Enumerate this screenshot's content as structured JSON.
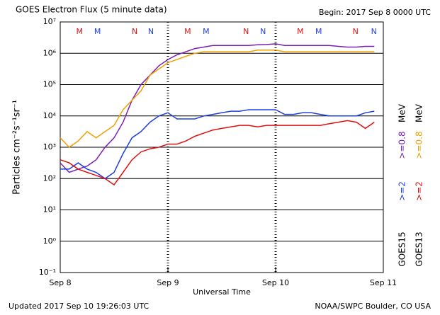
{
  "chart_data": {
    "type": "line",
    "title": "GOES Electron Flux (5 minute data)",
    "subtitle": "Begin: 2017 Sep 8 0000 UTC",
    "x_label": "Universal Time",
    "y_label": "Particles cm⁻²s⁻¹sr⁻¹",
    "footer_left": "Updated 2017 Sep 10 19:26:03 UTC",
    "footer_right": "NOAA/SWPC Boulder, CO USA",
    "log_y": true,
    "grid": true,
    "threshold": 1000,
    "xlim": [
      0,
      72
    ],
    "xticks": [
      {
        "value": 0,
        "label": "Sep 8"
      },
      {
        "value": 24,
        "label": "Sep 9"
      },
      {
        "value": 48,
        "label": "Sep 10"
      },
      {
        "value": 72,
        "label": "Sep 11"
      }
    ],
    "ylim": [
      0.1,
      10000000
    ],
    "yticks": [
      {
        "value": 0.1,
        "label": "10⁻¹"
      },
      {
        "value": 1,
        "label": "10⁰"
      },
      {
        "value": 10,
        "label": "10¹"
      },
      {
        "value": 100,
        "label": "10²"
      },
      {
        "value": 1000,
        "label": "10³"
      },
      {
        "value": 10000,
        "label": "10⁴"
      },
      {
        "value": 100000,
        "label": "10⁵"
      },
      {
        "value": 1000000,
        "label": "10⁶"
      },
      {
        "value": 10000000,
        "label": "10⁷"
      }
    ],
    "x": [
      0,
      2,
      4,
      6,
      8,
      10,
      12,
      14,
      16,
      18,
      20,
      22,
      24,
      26,
      28,
      30,
      32,
      34,
      36,
      38,
      40,
      42,
      44,
      46,
      48,
      50,
      52,
      54,
      56,
      58,
      60,
      62,
      64,
      66,
      68,
      70
    ],
    "legend": [
      {
        "satellite": "GOES15",
        "unit": "MeV"
      },
      {
        "satellite": "GOES13",
        "unit": "MeV"
      }
    ],
    "series": [
      {
        "name": ">=0.8",
        "legend": 0,
        "color": "#7a1fb8",
        "values": [
          316,
          158,
          200,
          251,
          398,
          1000,
          2000,
          6300,
          31600,
          100000,
          200000,
          400000,
          630000,
          890000,
          1120000,
          1410000,
          1580000,
          1780000,
          1780000,
          1780000,
          1780000,
          1780000,
          1860000,
          1900000,
          2000000,
          1780000,
          1780000,
          1780000,
          1780000,
          1780000,
          1780000,
          1660000,
          1580000,
          1580000,
          1660000,
          1660000
        ]
      },
      {
        "name": ">=2",
        "legend": 0,
        "color": "#1f3fe0",
        "values": [
          200,
          200,
          316,
          200,
          158,
          100,
          158,
          630,
          2000,
          3160,
          6300,
          10000,
          12600,
          8000,
          8000,
          8000,
          10000,
          11200,
          12600,
          14100,
          14100,
          15800,
          15800,
          15800,
          15800,
          11200,
          11200,
          12600,
          12600,
          11200,
          10000,
          10000,
          10000,
          10000,
          12600,
          14100
        ]
      },
      {
        "name": ">=0.8",
        "legend": 1,
        "color": "#f0a000",
        "values": [
          2000,
          1000,
          1580,
          3160,
          2000,
          3160,
          5000,
          15800,
          31600,
          63000,
          200000,
          316000,
          500000,
          630000,
          800000,
          1000000,
          1120000,
          1120000,
          1120000,
          1120000,
          1120000,
          1120000,
          1260000,
          1260000,
          1260000,
          1120000,
          1120000,
          1120000,
          1120000,
          1120000,
          1120000,
          1120000,
          1120000,
          1120000,
          1120000,
          1120000
        ]
      },
      {
        "name": ">=2",
        "legend": 1,
        "color": "#e01010",
        "values": [
          398,
          316,
          200,
          158,
          126,
          100,
          63,
          158,
          398,
          710,
          890,
          1000,
          1260,
          1260,
          1580,
          2240,
          2820,
          3550,
          4000,
          4470,
          5000,
          5000,
          4470,
          5000,
          5000,
          5000,
          5000,
          5000,
          5000,
          5000,
          5620,
          6300,
          7080,
          6300,
          4000,
          6300
        ]
      }
    ],
    "annotations": [
      {
        "x": 4.3,
        "label": "M",
        "color": "#e01010"
      },
      {
        "x": 8.3,
        "label": "M",
        "color": "#1f3fe0"
      },
      {
        "x": 16.6,
        "label": "N",
        "color": "#e01010"
      },
      {
        "x": 20.2,
        "label": "N",
        "color": "#1f3fe0"
      },
      {
        "x": 28.4,
        "label": "M",
        "color": "#e01010"
      },
      {
        "x": 32.5,
        "label": "M",
        "color": "#1f3fe0"
      },
      {
        "x": 41.4,
        "label": "N",
        "color": "#e01010"
      },
      {
        "x": 45.2,
        "label": "N",
        "color": "#1f3fe0"
      },
      {
        "x": 53.5,
        "label": "M",
        "color": "#e01010"
      },
      {
        "x": 57.6,
        "label": "M",
        "color": "#1f3fe0"
      },
      {
        "x": 65.8,
        "label": "N",
        "color": "#e01010"
      },
      {
        "x": 69.9,
        "label": "N",
        "color": "#1f3fe0"
      }
    ]
  }
}
